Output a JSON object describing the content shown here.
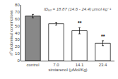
{
  "chart_data": {
    "type": "bar",
    "title": "ID₅₀ = 18.87 (14.6 - 24.4) μmol·kg⁻¹",
    "xlabel": "simiarenol (μMol/Kg)",
    "ylabel": "nº abdominal constrictions",
    "categories": [
      "control",
      "7.0",
      "14.1",
      "23.4"
    ],
    "values": [
      64,
      53,
      43,
      25
    ],
    "errors": [
      2.5,
      2.0,
      4.5,
      3.5
    ],
    "significance": [
      null,
      null,
      "**",
      "**"
    ],
    "colors": [
      "#888888",
      "#ffffff",
      "#ffffff",
      "#ffffff"
    ],
    "ylim": [
      0,
      80
    ],
    "yticks": [
      0,
      10,
      20,
      30,
      40,
      50,
      60,
      70,
      80
    ],
    "grid": false
  }
}
